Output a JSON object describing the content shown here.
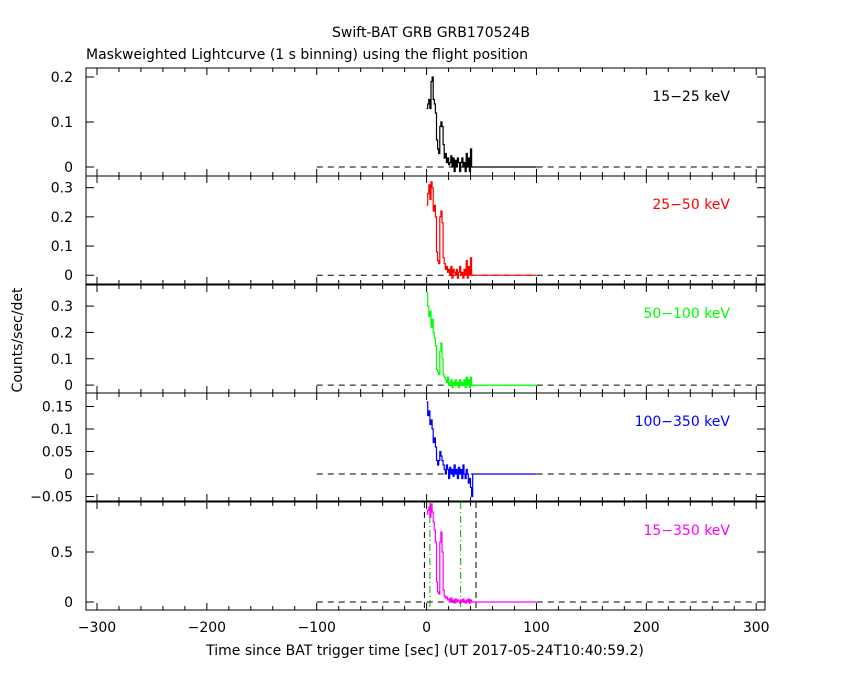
{
  "chart_data": {
    "type": "line",
    "title": "Swift-BAT GRB GRB170524B",
    "subtitle": "Maskweighted Lightcurve (1 s binning) using the flight position",
    "xlabel": "Time since BAT trigger time [sec] (UT 2017-05-24T10:40:59.2)",
    "ylabel": "Counts/sec/det",
    "xlim": [
      -310,
      308
    ],
    "x_ticks": [
      -300,
      -200,
      -100,
      0,
      100,
      200,
      300
    ],
    "x_tick_labels": [
      "−300",
      "−200",
      "−100",
      "0",
      "100",
      "200",
      "300"
    ],
    "panels": [
      {
        "name": "15-25 keV",
        "label": "15−25 keV",
        "color": "#000000",
        "ylim": [
          -0.02,
          0.22
        ],
        "y_ticks": [
          0,
          0.1,
          0.2
        ],
        "y_tick_labels": [
          "0",
          "0.1",
          "0.2"
        ],
        "series": {
          "x": [
            0,
            1,
            2,
            3,
            4,
            5,
            6,
            7,
            8,
            9,
            10,
            11,
            12,
            13,
            14,
            15,
            16,
            17,
            18,
            19,
            20,
            21,
            22,
            23,
            24,
            25,
            26,
            27,
            28,
            29,
            30,
            31,
            32,
            33,
            34,
            35,
            36,
            37,
            38,
            39,
            40,
            41,
            42,
            100
          ],
          "y": [
            0.13,
            0.14,
            0.15,
            0.13,
            0.19,
            0.2,
            0.15,
            0.14,
            0.12,
            0.06,
            0.04,
            0.03,
            0.09,
            0.1,
            0.09,
            0.05,
            0.02,
            0.03,
            0.01,
            0.02,
            0.005,
            0.01,
            0.025,
            0.0,
            0.02,
            -0.01,
            0.015,
            0.0,
            0.02,
            0.01,
            -0.01,
            0.01,
            0.02,
            0.0,
            0.01,
            -0.01,
            0.03,
            0.0,
            0.02,
            -0.01,
            0.04,
            0.0,
            0.0,
            0.0
          ]
        }
      },
      {
        "name": "25-50 keV",
        "label": "25−50 keV",
        "color": "#ff0000",
        "ylim": [
          -0.03,
          0.34
        ],
        "y_ticks": [
          0,
          0.1,
          0.2,
          0.3
        ],
        "y_tick_labels": [
          "0",
          "0.1",
          "0.2",
          "0.3"
        ],
        "series": {
          "x": [
            0,
            1,
            2,
            3,
            4,
            5,
            6,
            7,
            8,
            9,
            10,
            11,
            12,
            13,
            14,
            15,
            16,
            17,
            18,
            19,
            20,
            21,
            22,
            23,
            24,
            25,
            26,
            27,
            28,
            29,
            30,
            31,
            32,
            33,
            34,
            35,
            36,
            37,
            38,
            39,
            40,
            41,
            42,
            100
          ],
          "y": [
            0.24,
            0.28,
            0.31,
            0.26,
            0.32,
            0.3,
            0.22,
            0.24,
            0.2,
            0.08,
            0.05,
            0.04,
            0.2,
            0.22,
            0.18,
            0.06,
            0.04,
            0.02,
            0.03,
            0.01,
            0.02,
            0.0,
            0.03,
            -0.01,
            0.02,
            0.01,
            0.0,
            0.02,
            -0.01,
            0.01,
            0.03,
            0.0,
            0.01,
            -0.01,
            0.02,
            0.0,
            0.05,
            -0.01,
            0.03,
            0.0,
            0.06,
            0.0,
            0.0,
            0.0
          ]
        }
      },
      {
        "name": "50-100 keV",
        "label": "50−100 keV",
        "color": "#00ff00",
        "ylim": [
          -0.03,
          0.38
        ],
        "y_ticks": [
          0,
          0.1,
          0.2,
          0.3
        ],
        "y_tick_labels": [
          "0",
          "0.1",
          "0.2",
          "0.3"
        ],
        "series": {
          "x": [
            0,
            1,
            2,
            3,
            4,
            5,
            6,
            7,
            8,
            9,
            10,
            11,
            12,
            13,
            14,
            15,
            16,
            17,
            18,
            19,
            20,
            21,
            22,
            23,
            24,
            25,
            26,
            27,
            28,
            29,
            30,
            31,
            32,
            33,
            34,
            35,
            36,
            37,
            38,
            39,
            40,
            41,
            42,
            100
          ],
          "y": [
            0.35,
            0.3,
            0.26,
            0.28,
            0.22,
            0.25,
            0.2,
            0.18,
            0.15,
            0.06,
            0.05,
            0.04,
            0.13,
            0.16,
            0.1,
            0.04,
            0.03,
            0.02,
            0.01,
            0.03,
            0.0,
            0.01,
            0.02,
            -0.01,
            0.01,
            0.0,
            0.02,
            0.0,
            0.01,
            -0.01,
            0.02,
            0.0,
            0.01,
            0.0,
            0.02,
            -0.01,
            0.03,
            0.0,
            0.02,
            -0.01,
            0.03,
            0.0,
            0.0,
            0.0
          ]
        }
      },
      {
        "name": "100-350 keV",
        "label": "100−350 keV",
        "color": "#0000ff",
        "ylim": [
          -0.06,
          0.18
        ],
        "y_ticks": [
          -0.05,
          0,
          0.05,
          0.1,
          0.15
        ],
        "y_tick_labels": [
          "−0.05",
          "0",
          "0.05",
          "0.1",
          "0.15"
        ],
        "series": {
          "x": [
            0,
            1,
            2,
            3,
            4,
            5,
            6,
            7,
            8,
            9,
            10,
            11,
            12,
            13,
            14,
            15,
            16,
            17,
            18,
            19,
            20,
            21,
            22,
            23,
            24,
            25,
            26,
            27,
            28,
            29,
            30,
            31,
            32,
            33,
            34,
            35,
            36,
            37,
            38,
            39,
            40,
            41,
            42,
            100
          ],
          "y": [
            0.16,
            0.13,
            0.14,
            0.11,
            0.12,
            0.1,
            0.07,
            0.08,
            0.06,
            0.03,
            0.02,
            0.03,
            0.05,
            0.04,
            0.03,
            0.02,
            0.01,
            0.0,
            0.02,
            0.01,
            -0.01,
            0.015,
            0.0,
            0.01,
            -0.005,
            0.02,
            0.0,
            0.01,
            -0.01,
            0.015,
            0.0,
            0.01,
            -0.01,
            0.02,
            0.0,
            -0.01,
            0.01,
            0.0,
            -0.02,
            -0.01,
            -0.03,
            -0.05,
            0.0,
            0.0
          ]
        }
      },
      {
        "name": "15-350 keV",
        "label": "15−350 keV",
        "color": "#ff00ff",
        "ylim": [
          -0.08,
          1.0
        ],
        "y_ticks": [
          0,
          0.5
        ],
        "y_tick_labels": [
          "0",
          "0.5"
        ],
        "series": {
          "x": [
            0,
            1,
            2,
            3,
            4,
            5,
            6,
            7,
            8,
            9,
            10,
            11,
            12,
            13,
            14,
            15,
            16,
            17,
            18,
            19,
            20,
            21,
            22,
            23,
            24,
            25,
            26,
            27,
            28,
            29,
            30,
            31,
            32,
            33,
            34,
            35,
            36,
            37,
            38,
            39,
            40,
            41,
            42,
            100
          ],
          "y": [
            0.88,
            0.92,
            0.95,
            0.85,
            0.98,
            0.9,
            0.8,
            0.72,
            0.6,
            0.2,
            0.1,
            0.08,
            0.6,
            0.7,
            0.5,
            0.12,
            0.06,
            0.04,
            0.05,
            0.02,
            0.03,
            0.0,
            0.04,
            0.01,
            0.02,
            -0.01,
            0.03,
            0.0,
            0.02,
            0.01,
            -0.01,
            0.02,
            0.0,
            0.03,
            0.01,
            -0.01,
            0.02,
            0.0,
            0.03,
            -0.01,
            0.02,
            0.0,
            0.0,
            0.0
          ]
        },
        "vertical_lines": [
          {
            "x": -2,
            "color": "#000000",
            "style": "dashed"
          },
          {
            "x": 45,
            "color": "#000000",
            "style": "dashed"
          },
          {
            "x": 3,
            "color": "#00aa00",
            "style": "dashdot"
          },
          {
            "x": 31,
            "color": "#00aa00",
            "style": "dashdot"
          }
        ]
      }
    ],
    "zero_line": {
      "x_start": -100,
      "x_end": 308,
      "style": "dashed"
    },
    "grid": false
  }
}
